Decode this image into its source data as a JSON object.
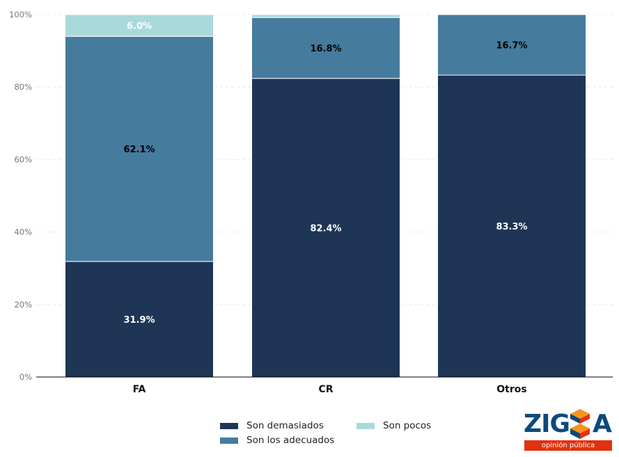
{
  "chart_data": {
    "type": "bar",
    "stacked": true,
    "categories": [
      "FA",
      "CR",
      "Otros"
    ],
    "series": [
      {
        "name": "Son demasiados",
        "color": "#1e3556",
        "values": [
          31.9,
          82.4,
          83.3
        ],
        "labels": [
          "31.9%",
          "82.4%",
          "83.3%"
        ],
        "label_color": "#ffffff"
      },
      {
        "name": "Son los adecuados",
        "color": "#457b9d",
        "values": [
          62.1,
          16.8,
          16.7
        ],
        "labels": [
          "62.1%",
          "16.8%",
          "16.7%"
        ],
        "label_color": "#000000"
      },
      {
        "name": "Son pocos",
        "color": "#a8dadc",
        "values": [
          6.0,
          0.8,
          0.0
        ],
        "labels": [
          "6.0%",
          "",
          ""
        ],
        "label_color": "#ffffff"
      }
    ],
    "ylim": [
      0,
      100
    ],
    "yticks": [
      "0%",
      "20%",
      "40%",
      "60%",
      "80%",
      "100%"
    ],
    "grid": true,
    "legend_position": "bottom"
  },
  "logo": {
    "word_left": "ZIG",
    "word_right": "A",
    "tagline": "opinión pública"
  }
}
